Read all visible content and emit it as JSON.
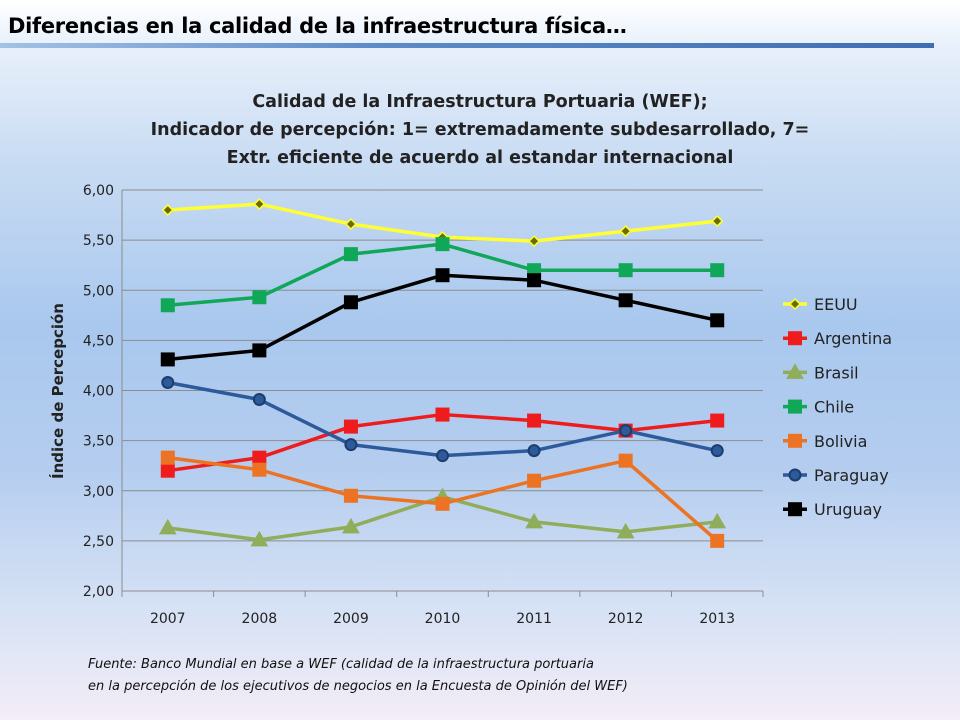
{
  "slide": {
    "title": "Diferencias en la calidad de la infraestructura física…"
  },
  "chart_data": {
    "type": "line",
    "title_lines": [
      "Calidad de la Infraestructura Portuaria (WEF);",
      "Indicador de percepción:  1= extremadamente subdesarrollado, 7=",
      "Extr. eficiente de acuerdo al estandar internacional"
    ],
    "xlabel": "",
    "ylabel": "Índice de Percepción",
    "categories": [
      "2007",
      "2008",
      "2009",
      "2010",
      "2011",
      "2012",
      "2013"
    ],
    "ylim": [
      2.0,
      6.0
    ],
    "yticks": [
      "2,00",
      "2,50",
      "3,00",
      "3,50",
      "4,00",
      "4,50",
      "5,00",
      "5,50",
      "6,00"
    ],
    "grid": true,
    "legend_position": "right",
    "series": [
      {
        "name": "EEUU",
        "color": "#ffff33",
        "marker": "diamond",
        "values": [
          5.8,
          5.86,
          5.66,
          5.53,
          5.49,
          5.59,
          5.69
        ]
      },
      {
        "name": "Argentina",
        "color": "#ee1c1c",
        "marker": "square",
        "values": [
          3.2,
          3.33,
          3.64,
          3.76,
          3.7,
          3.6,
          3.7
        ]
      },
      {
        "name": "Brasil",
        "color": "#8fad5a",
        "marker": "triangle",
        "values": [
          2.63,
          2.51,
          2.64,
          2.94,
          2.69,
          2.59,
          2.69
        ]
      },
      {
        "name": "Chile",
        "color": "#10a858",
        "marker": "square",
        "values": [
          4.85,
          4.93,
          5.36,
          5.46,
          5.2,
          5.2,
          5.2
        ]
      },
      {
        "name": "Bolivia",
        "color": "#ec7323",
        "marker": "square",
        "values": [
          3.33,
          3.21,
          2.95,
          2.87,
          3.1,
          3.3,
          2.5
        ]
      },
      {
        "name": "Paraguay",
        "color": "#2d5a9a",
        "marker": "circle",
        "values": [
          4.08,
          3.91,
          3.46,
          3.35,
          3.4,
          3.6,
          3.4
        ]
      },
      {
        "name": "Uruguay",
        "color": "#000000",
        "marker": "square",
        "values": [
          4.31,
          4.4,
          4.88,
          5.15,
          5.1,
          4.9,
          4.7
        ]
      }
    ]
  },
  "source": {
    "line1": "Fuente: Banco Mundial en base a WEF (calidad de la infraestructura portuaria",
    "line2": "en la percepción de los ejecutivos de negocios en la Encuesta de Opinión del WEF)"
  }
}
